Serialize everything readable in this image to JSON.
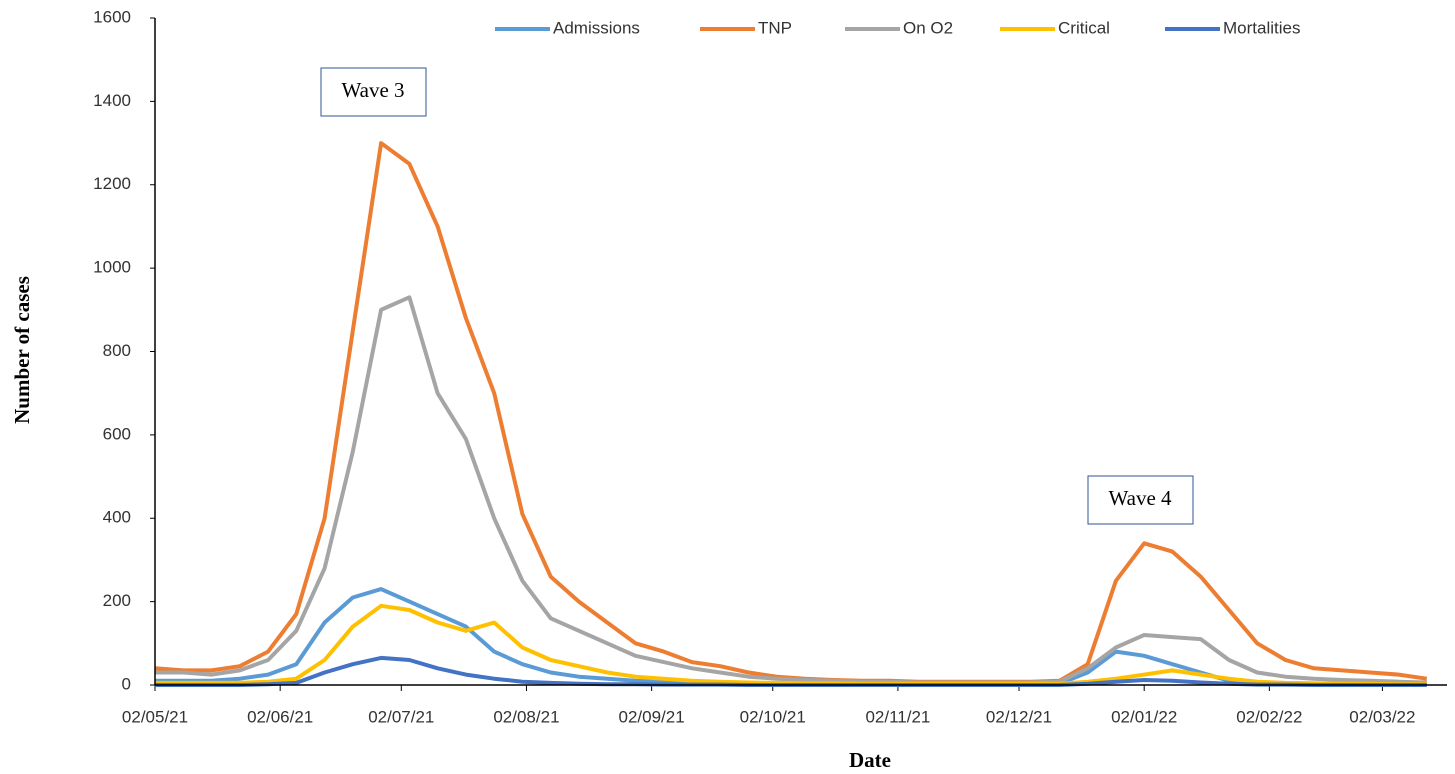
{
  "chart_data": {
    "type": "line",
    "y_label": "Number of cases",
    "x_label": "Date",
    "annotations": [
      "Wave 3",
      "Wave 4"
    ],
    "x": [
      "02/05/21",
      "09/05/21",
      "16/05/21",
      "23/05/21",
      "30/05/21",
      "06/06/21",
      "13/06/21",
      "20/06/21",
      "27/06/21",
      "04/07/21",
      "11/07/21",
      "18/07/21",
      "25/07/21",
      "01/08/21",
      "08/08/21",
      "15/08/21",
      "22/08/21",
      "29/08/21",
      "05/09/21",
      "12/09/21",
      "19/09/21",
      "26/09/21",
      "03/10/21",
      "10/10/21",
      "17/10/21",
      "24/10/21",
      "31/10/21",
      "07/11/21",
      "14/11/21",
      "21/11/21",
      "28/11/21",
      "05/12/21",
      "12/12/21",
      "19/12/21",
      "26/12/21",
      "02/01/22",
      "09/01/22",
      "16/01/22",
      "23/01/22",
      "30/01/22",
      "06/02/22",
      "13/02/22",
      "20/02/22",
      "27/02/22",
      "06/03/22",
      "13/03/22"
    ],
    "series": [
      {
        "name": "Admissions",
        "color": "#5b9bd5",
        "values": [
          10,
          10,
          10,
          15,
          25,
          50,
          150,
          210,
          230,
          200,
          170,
          140,
          80,
          50,
          30,
          20,
          15,
          10,
          8,
          6,
          5,
          4,
          3,
          3,
          3,
          3,
          2,
          2,
          2,
          2,
          2,
          2,
          3,
          30,
          80,
          70,
          50,
          30,
          10,
          5,
          4,
          3,
          3,
          2,
          2,
          2
        ]
      },
      {
        "name": "TNP",
        "color": "#ed7d31",
        "values": [
          40,
          35,
          35,
          45,
          80,
          170,
          400,
          850,
          1300,
          1250,
          1100,
          880,
          700,
          410,
          260,
          200,
          150,
          100,
          80,
          55,
          45,
          30,
          20,
          15,
          12,
          10,
          10,
          8,
          8,
          8,
          8,
          8,
          10,
          50,
          250,
          340,
          320,
          260,
          180,
          100,
          60,
          40,
          35,
          30,
          25,
          15
        ]
      },
      {
        "name": "On O2",
        "color": "#a5a5a5",
        "values": [
          30,
          30,
          25,
          35,
          60,
          130,
          280,
          560,
          900,
          930,
          700,
          590,
          400,
          250,
          160,
          130,
          100,
          70,
          55,
          40,
          30,
          20,
          15,
          12,
          10,
          8,
          8,
          6,
          6,
          6,
          6,
          6,
          8,
          40,
          90,
          120,
          115,
          110,
          60,
          30,
          20,
          15,
          12,
          10,
          8,
          6
        ]
      },
      {
        "name": "Critical",
        "color": "#ffc000",
        "values": [
          5,
          5,
          5,
          5,
          8,
          15,
          60,
          140,
          190,
          180,
          150,
          130,
          150,
          90,
          60,
          45,
          30,
          20,
          15,
          10,
          8,
          6,
          5,
          4,
          4,
          3,
          3,
          3,
          3,
          3,
          3,
          3,
          3,
          8,
          15,
          25,
          35,
          25,
          15,
          8,
          5,
          4,
          3,
          3,
          2,
          2
        ]
      },
      {
        "name": "Mortalities",
        "color": "#4472c4",
        "values": [
          0,
          0,
          0,
          0,
          2,
          5,
          30,
          50,
          65,
          60,
          40,
          25,
          15,
          8,
          5,
          3,
          2,
          2,
          1,
          1,
          1,
          0,
          0,
          0,
          0,
          0,
          0,
          0,
          0,
          0,
          0,
          0,
          0,
          3,
          8,
          12,
          10,
          6,
          3,
          1,
          1,
          0,
          0,
          0,
          0,
          0
        ]
      }
    ],
    "xlim": [
      "02/05/21",
      "18/03/22"
    ],
    "xticks": [
      "02/05/21",
      "02/06/21",
      "02/07/21",
      "02/08/21",
      "02/09/21",
      "02/10/21",
      "02/11/21",
      "02/12/21",
      "02/01/22",
      "02/02/22",
      "02/03/22"
    ],
    "ylim": [
      0,
      1600
    ],
    "yticks": [
      0,
      200,
      400,
      600,
      800,
      1000,
      1200,
      1400,
      1600
    ]
  }
}
